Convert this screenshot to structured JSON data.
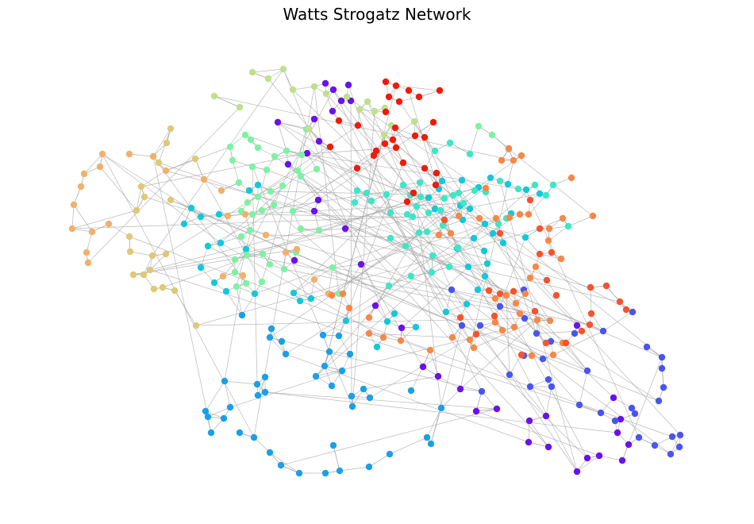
{
  "title": "Watts Strogatz Network",
  "diagram": {
    "type": "network-graph",
    "model": "Watts-Strogatz",
    "edge_color": "#a8a8a8",
    "palette": [
      "#6a12ee",
      "#4a55f0",
      "#1aa0e8",
      "#14c8dc",
      "#3de6c6",
      "#7ef2a4",
      "#c0e08a",
      "#e0c876",
      "#f2b06c",
      "#f78846",
      "#f5542e",
      "#f21a0a"
    ],
    "node_count_visible": 320
  }
}
